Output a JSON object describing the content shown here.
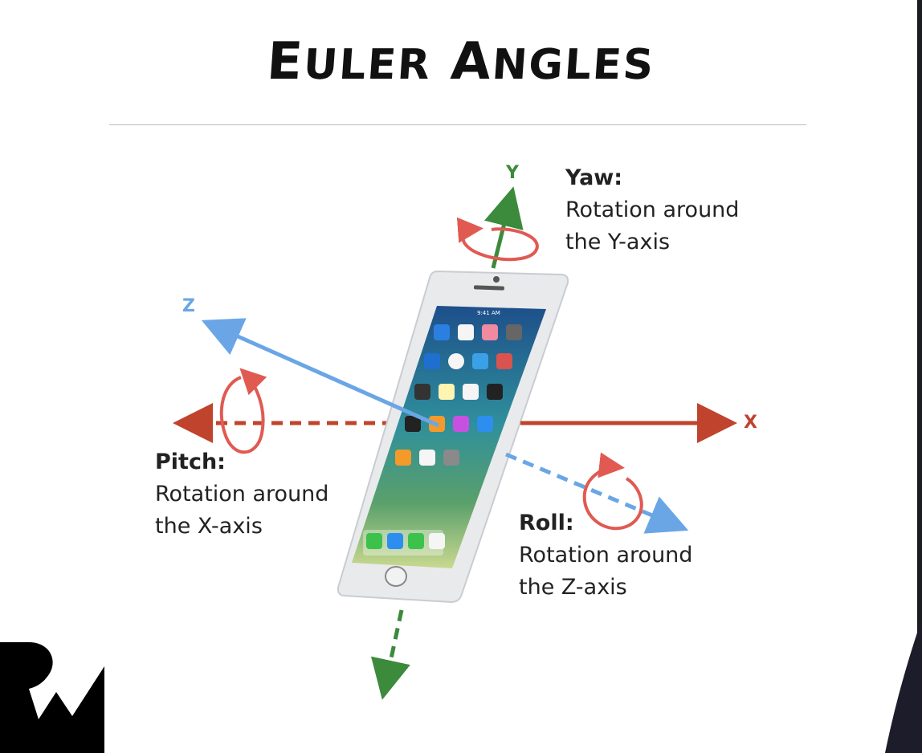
{
  "title": {
    "first": "E",
    "first_rest": "ULER",
    "second": "A",
    "second_rest": "NGLES"
  },
  "axes": {
    "x": "X",
    "y": "Y",
    "z": "Z"
  },
  "yaw": {
    "head": "Yaw:",
    "line1": "Rotation around",
    "line2": "the Y-axis"
  },
  "pitch": {
    "head": "Pitch:",
    "line1": "Rotation around",
    "line2": "the X-axis"
  },
  "roll": {
    "head": "Roll:",
    "line1": "Rotation around",
    "line2": "the Z-axis"
  },
  "phone": {
    "status_time": "9:41 AM"
  },
  "colors": {
    "x_axis": "#c0432d",
    "y_axis": "#3c8a3c",
    "z_axis": "#6aa6e6",
    "rotation_arrow": "#e05a52",
    "text": "#222222"
  }
}
